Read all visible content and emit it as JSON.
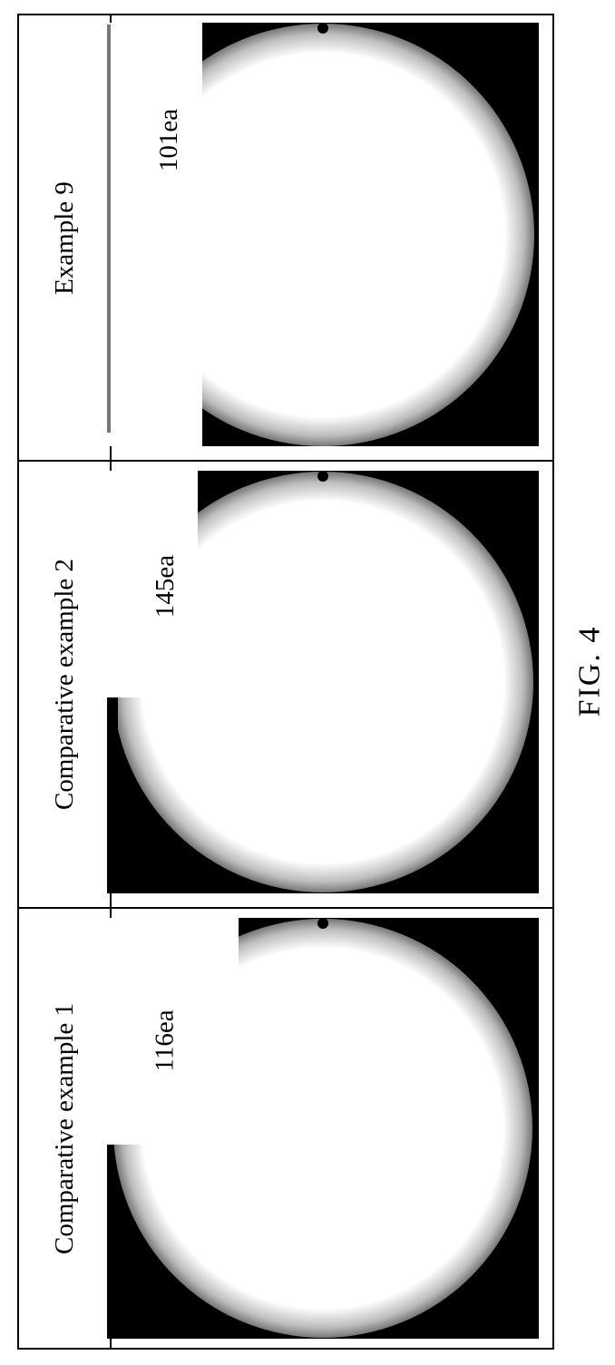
{
  "table": {
    "rows": [
      {
        "header": "Comparative example 1",
        "count": "116ea"
      },
      {
        "header": "Comparative example 2",
        "count": "145ea"
      },
      {
        "header": "Example 9",
        "count": "101ea"
      }
    ]
  },
  "figure": {
    "caption": "FIG. 4"
  },
  "colors": {
    "background": "#000000",
    "wafer": "#ffffff",
    "border": "#000000"
  }
}
